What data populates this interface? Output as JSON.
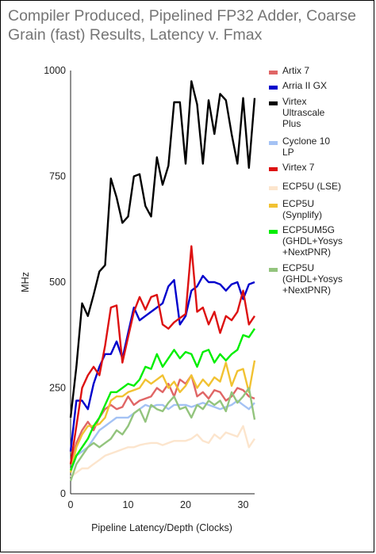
{
  "chart_data": {
    "type": "line",
    "title": "Compiler Produced, Pipelined FP32 Adder, Coarse Grain (fast) Results, Latency v. Fmax",
    "xlabel": "Pipeline Latency/Depth (Clocks)",
    "ylabel": "MHz",
    "xlim": [
      0,
      32
    ],
    "ylim": [
      0,
      1000
    ],
    "xticks": [
      "0",
      "10",
      "20",
      "30"
    ],
    "yticks": [
      "0",
      "250",
      "500",
      "750",
      "1000"
    ],
    "grid": false,
    "legend": "right",
    "x": [
      0,
      1,
      2,
      3,
      4,
      5,
      6,
      7,
      8,
      9,
      10,
      11,
      12,
      13,
      14,
      15,
      16,
      17,
      18,
      19,
      20,
      21,
      22,
      23,
      24,
      25,
      26,
      27,
      28,
      29,
      30,
      31,
      32
    ],
    "series": [
      {
        "name": "Artix 7",
        "color": "#e06666",
        "values": [
          70,
          120,
          150,
          170,
          150,
          180,
          200,
          210,
          200,
          205,
          230,
          210,
          220,
          225,
          230,
          250,
          240,
          260,
          230,
          270,
          260,
          280,
          230,
          240,
          225,
          245,
          240,
          220,
          230,
          250,
          245,
          230,
          225
        ]
      },
      {
        "name": "Arria II GX",
        "color": "#0000cc",
        "values": [
          100,
          220,
          220,
          200,
          260,
          300,
          330,
          330,
          360,
          320,
          380,
          440,
          410,
          420,
          430,
          440,
          450,
          490,
          505,
          400,
          420,
          480,
          490,
          515,
          500,
          500,
          495,
          480,
          495,
          500,
          460,
          495,
          500
        ]
      },
      {
        "name": "Virtex Ultrascale Plus",
        "color": "#000000",
        "values": [
          180,
          300,
          450,
          420,
          470,
          525,
          540,
          745,
          700,
          640,
          655,
          750,
          755,
          680,
          655,
          795,
          730,
          775,
          925,
          925,
          780,
          975,
          920,
          780,
          930,
          850,
          945,
          930,
          850,
          780,
          935,
          770,
          935
        ]
      },
      {
        "name": "Cyclone 10 LP",
        "color": "#a4c2f4",
        "values": [
          50,
          90,
          100,
          110,
          130,
          150,
          160,
          170,
          180,
          180,
          180,
          190,
          200,
          210,
          205,
          210,
          210,
          200,
          210,
          210,
          210,
          205,
          210,
          215,
          210,
          205,
          200,
          205,
          210,
          220,
          210,
          200,
          215
        ]
      },
      {
        "name": "Virtex 7",
        "color": "#dd1111",
        "values": [
          70,
          160,
          250,
          280,
          300,
          280,
          350,
          440,
          445,
          310,
          370,
          430,
          465,
          435,
          465,
          470,
          400,
          390,
          405,
          415,
          425,
          585,
          430,
          440,
          400,
          430,
          380,
          420,
          410,
          430,
          480,
          400,
          420
        ]
      },
      {
        "name": "ECP5U (LSE)",
        "color": "#fce5cd",
        "values": [
          40,
          50,
          60,
          60,
          70,
          80,
          90,
          95,
          100,
          105,
          110,
          110,
          115,
          118,
          120,
          120,
          115,
          120,
          125,
          125,
          125,
          130,
          140,
          125,
          120,
          140,
          130,
          145,
          140,
          135,
          160,
          110,
          130
        ]
      },
      {
        "name": "ECP5U (Synplify)",
        "color": "#f1c232",
        "values": [
          50,
          110,
          140,
          160,
          160,
          165,
          180,
          220,
          230,
          230,
          240,
          245,
          250,
          270,
          260,
          270,
          280,
          250,
          265,
          240,
          255,
          280,
          250,
          270,
          255,
          275,
          265,
          310,
          255,
          290,
          295,
          240,
          315
        ]
      },
      {
        "name": "ECP5UM5G (GHDL+Yosys+NextPNR)",
        "color": "#00ee00",
        "values": [
          55,
          90,
          110,
          130,
          160,
          180,
          210,
          240,
          240,
          250,
          260,
          255,
          270,
          300,
          295,
          330,
          300,
          320,
          340,
          320,
          335,
          330,
          300,
          335,
          340,
          310,
          330,
          315,
          330,
          340,
          375,
          370,
          390
        ]
      },
      {
        "name": "ECP5U (GHDL+Yosys+NextPNR)",
        "color": "#93c47d",
        "values": [
          30,
          70,
          90,
          110,
          120,
          110,
          120,
          130,
          150,
          140,
          160,
          190,
          200,
          170,
          210,
          200,
          195,
          215,
          230,
          200,
          205,
          180,
          210,
          200,
          220,
          210,
          220,
          195,
          240,
          215,
          230,
          250,
          175
        ]
      }
    ]
  }
}
